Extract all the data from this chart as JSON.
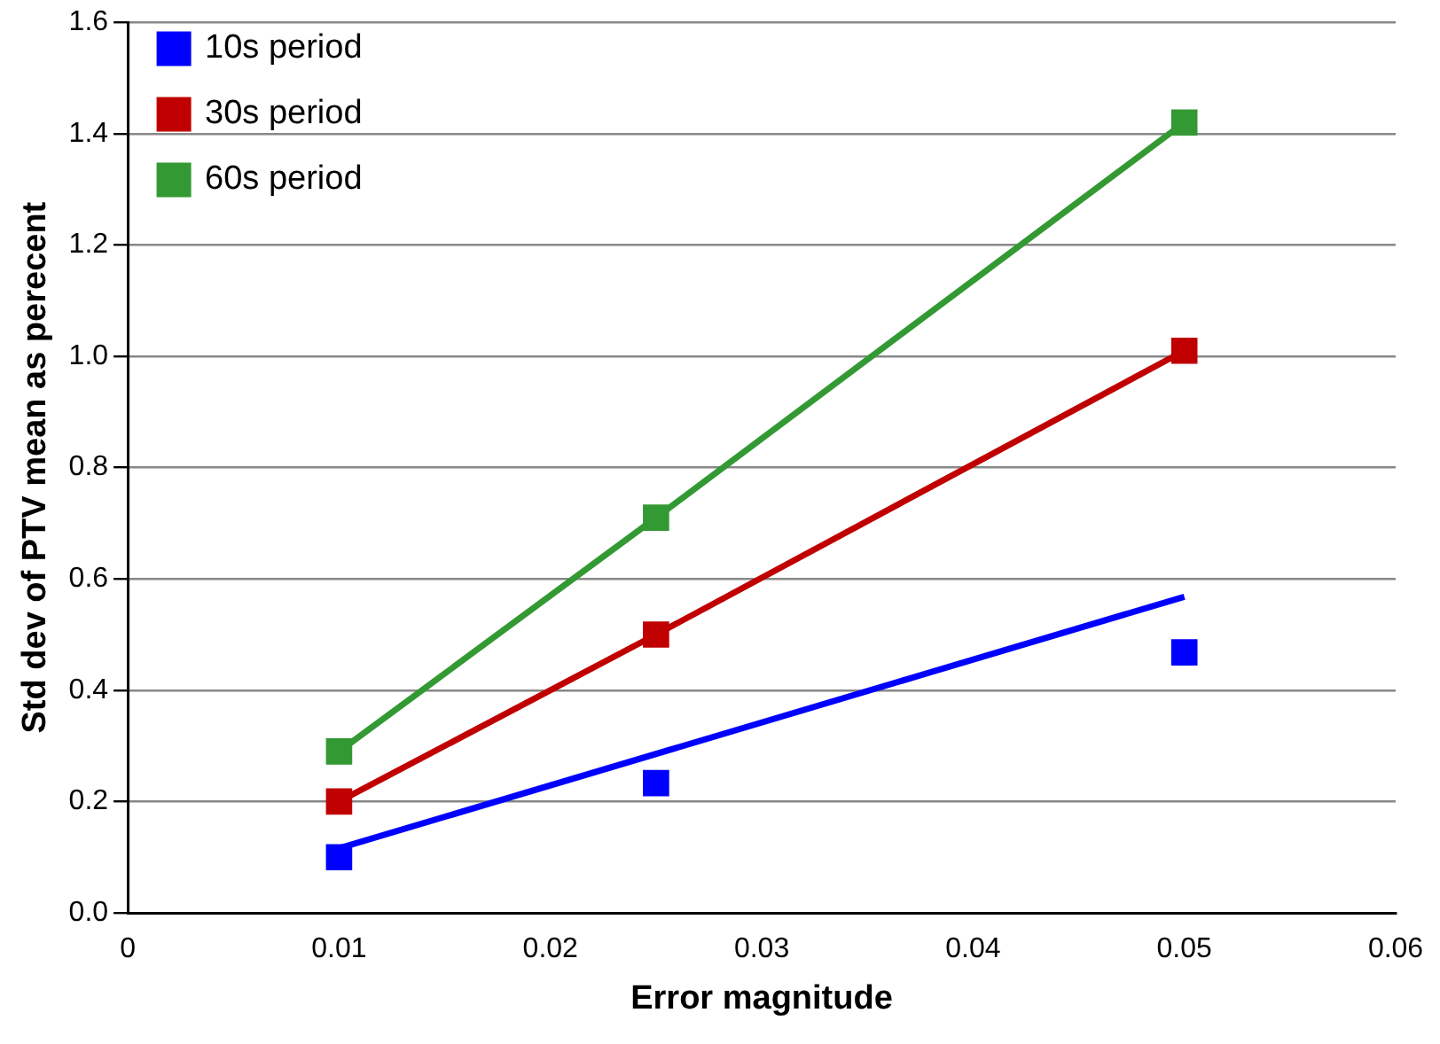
{
  "chart_data": {
    "type": "scatter",
    "xlabel": "Error magnitude",
    "ylabel": "Std dev of PTV mean as perecent",
    "xlim": [
      0,
      0.06
    ],
    "xticks": [
      0,
      0.01,
      0.02,
      0.03,
      0.04,
      0.05,
      0.06
    ],
    "ylim": [
      0,
      1.6
    ],
    "yticks": [
      {
        "value": 0,
        "label": "0.0"
      },
      0.2,
      0.4,
      0.6,
      0.8,
      {
        "value": 1,
        "label": "1.0"
      },
      1.2,
      1.4,
      1.6
    ],
    "grid": "y",
    "legend": "top left",
    "marker": "square",
    "series": [
      {
        "name": "10s period",
        "color": "#0000ff",
        "x": [
          0.01,
          0.025,
          0.05
        ],
        "values": [
          0.1,
          0.233,
          0.468
        ]
      },
      {
        "type": "line",
        "marker": "none",
        "color": "#0000ff",
        "x": [
          0.01,
          0.05
        ],
        "values": [
          0.116,
          0.568
        ]
      },
      {
        "name": "30s period",
        "type": "line",
        "color": "#c00000",
        "x": [
          0.01,
          0.025,
          0.05
        ],
        "values": [
          0.2,
          0.5,
          1.01
        ]
      },
      {
        "name": "60s period",
        "type": "line",
        "color": "#339933",
        "x": [
          0.01,
          0.025,
          0.05
        ],
        "values": [
          0.29,
          0.71,
          1.42
        ]
      }
    ]
  }
}
